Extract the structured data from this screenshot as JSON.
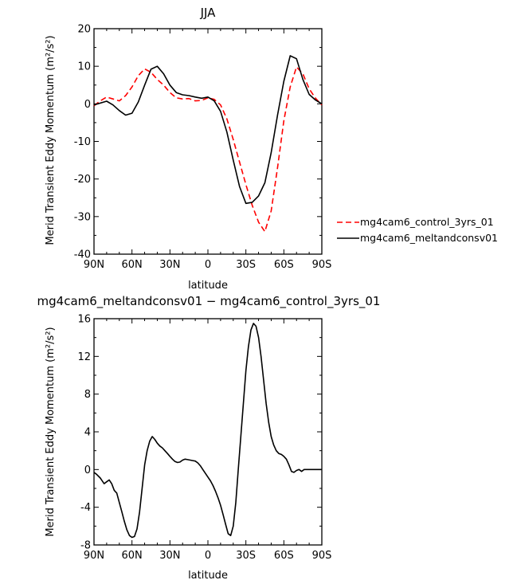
{
  "chart_data": [
    {
      "type": "line",
      "title": "JJA",
      "xlabel": "latitude",
      "ylabel": "Merid Transient Eddy Momentum (m²/s²)",
      "xlim": [
        -90,
        90
      ],
      "ylim": [
        -40,
        20
      ],
      "xticks": [
        -90,
        -60,
        -30,
        0,
        30,
        60,
        90
      ],
      "xticklabels": [
        "90N",
        "60N",
        "30N",
        "0",
        "30S",
        "60S",
        "90S"
      ],
      "yticks": [
        -40,
        -30,
        -20,
        -10,
        0,
        10,
        20
      ],
      "yticklabels": [
        "-40",
        "-30",
        "-20",
        "-10",
        "0",
        "10",
        "20"
      ],
      "legend_position": "right-lower",
      "series": [
        {
          "name": "mg4cam6_control_3yrs_01",
          "color": "#ff0000",
          "style": "dashed",
          "x": [
            -90,
            -85,
            -80,
            -75,
            -70,
            -65,
            -60,
            -55,
            -50,
            -45,
            -40,
            -35,
            -30,
            -25,
            -20,
            -15,
            -10,
            -5,
            0,
            5,
            10,
            15,
            20,
            25,
            30,
            35,
            40,
            45,
            50,
            55,
            60,
            65,
            70,
            75,
            80,
            85,
            90
          ],
          "y": [
            -0.5,
            0.8,
            1.8,
            1.3,
            0.8,
            2.2,
            4.5,
            7.5,
            9.3,
            8.4,
            6.5,
            5.0,
            3.0,
            1.6,
            1.3,
            1.4,
            0.8,
            0.9,
            1.6,
            1.2,
            -0.3,
            -4.0,
            -9.5,
            -15.5,
            -21.5,
            -27.0,
            -31.5,
            -34.0,
            -28.5,
            -17.0,
            -4.5,
            4.5,
            9.8,
            8.0,
            4.0,
            1.5,
            -0.3
          ]
        },
        {
          "name": "mg4cam6_meltandconsv01",
          "color": "#000000",
          "style": "solid",
          "x": [
            -90,
            -85,
            -80,
            -75,
            -70,
            -65,
            -60,
            -55,
            -50,
            -45,
            -40,
            -35,
            -30,
            -25,
            -20,
            -15,
            -10,
            -5,
            0,
            5,
            10,
            15,
            20,
            25,
            30,
            35,
            40,
            45,
            50,
            55,
            60,
            65,
            70,
            75,
            80,
            85,
            90
          ],
          "y": [
            -0.3,
            0.2,
            0.7,
            -0.3,
            -1.8,
            -3.0,
            -2.5,
            0.5,
            5.0,
            9.2,
            10.0,
            8.0,
            5.0,
            3.0,
            2.4,
            2.2,
            1.8,
            1.5,
            1.8,
            0.8,
            -2.0,
            -7.5,
            -15.0,
            -22.0,
            -26.5,
            -26.2,
            -24.5,
            -21.0,
            -13.0,
            -3.0,
            6.0,
            12.8,
            12.0,
            6.5,
            2.5,
            1.0,
            0.0
          ]
        }
      ]
    },
    {
      "type": "line",
      "title": "mg4cam6_meltandconsv01 − mg4cam6_control_3yrs_01",
      "xlabel": "latitude",
      "ylabel": "Merid Transient Eddy Momentum (m²/s²)",
      "xlim": [
        -90,
        90
      ],
      "ylim": [
        -8,
        16
      ],
      "xticks": [
        -90,
        -60,
        -30,
        0,
        30,
        60,
        90
      ],
      "xticklabels": [
        "90N",
        "60N",
        "30N",
        "0",
        "30S",
        "60S",
        "90S"
      ],
      "yticks": [
        -8,
        -4,
        0,
        4,
        8,
        12,
        16
      ],
      "yticklabels": [
        "-8",
        "-4",
        "0",
        "4",
        "8",
        "12",
        "16"
      ],
      "series": [
        {
          "color": "#000000",
          "style": "solid",
          "x": [
            -90,
            -88,
            -85,
            -82,
            -80,
            -78,
            -76,
            -74,
            -72,
            -70,
            -68,
            -66,
            -64,
            -62,
            -60,
            -58,
            -56,
            -54,
            -52,
            -50,
            -48,
            -46,
            -44,
            -42,
            -40,
            -38,
            -36,
            -34,
            -32,
            -30,
            -28,
            -26,
            -24,
            -22,
            -20,
            -18,
            -16,
            -14,
            -12,
            -10,
            -8,
            -6,
            -4,
            -2,
            0,
            2,
            4,
            6,
            8,
            10,
            12,
            14,
            16,
            18,
            20,
            22,
            24,
            26,
            28,
            30,
            32,
            34,
            36,
            38,
            40,
            42,
            44,
            46,
            48,
            50,
            52,
            54,
            56,
            58,
            60,
            62,
            64,
            66,
            68,
            70,
            72,
            74,
            76,
            78,
            80,
            82,
            84,
            86,
            88,
            90
          ],
          "y": [
            -0.3,
            -0.5,
            -0.9,
            -1.5,
            -1.3,
            -1.1,
            -1.5,
            -2.2,
            -2.5,
            -3.5,
            -4.5,
            -5.5,
            -6.4,
            -7.0,
            -7.2,
            -7.1,
            -6.3,
            -4.5,
            -2.0,
            0.5,
            2.0,
            3.0,
            3.5,
            3.2,
            2.8,
            2.5,
            2.3,
            2.0,
            1.7,
            1.4,
            1.1,
            0.85,
            0.75,
            0.8,
            1.0,
            1.1,
            1.05,
            1.0,
            0.95,
            0.9,
            0.7,
            0.4,
            0.0,
            -0.4,
            -0.8,
            -1.2,
            -1.7,
            -2.3,
            -3.0,
            -3.8,
            -4.8,
            -5.8,
            -6.8,
            -7.0,
            -6.0,
            -3.5,
            0.0,
            3.5,
            7.0,
            10.5,
            13.0,
            14.8,
            15.5,
            15.2,
            14.0,
            12.0,
            9.5,
            7.0,
            5.0,
            3.5,
            2.6,
            2.0,
            1.7,
            1.6,
            1.4,
            1.1,
            0.5,
            -0.2,
            -0.3,
            -0.1,
            0.0,
            -0.2,
            0.0,
            0.0,
            0.0,
            0.0,
            0.0,
            0.0,
            0.0,
            0.0
          ]
        }
      ]
    }
  ]
}
